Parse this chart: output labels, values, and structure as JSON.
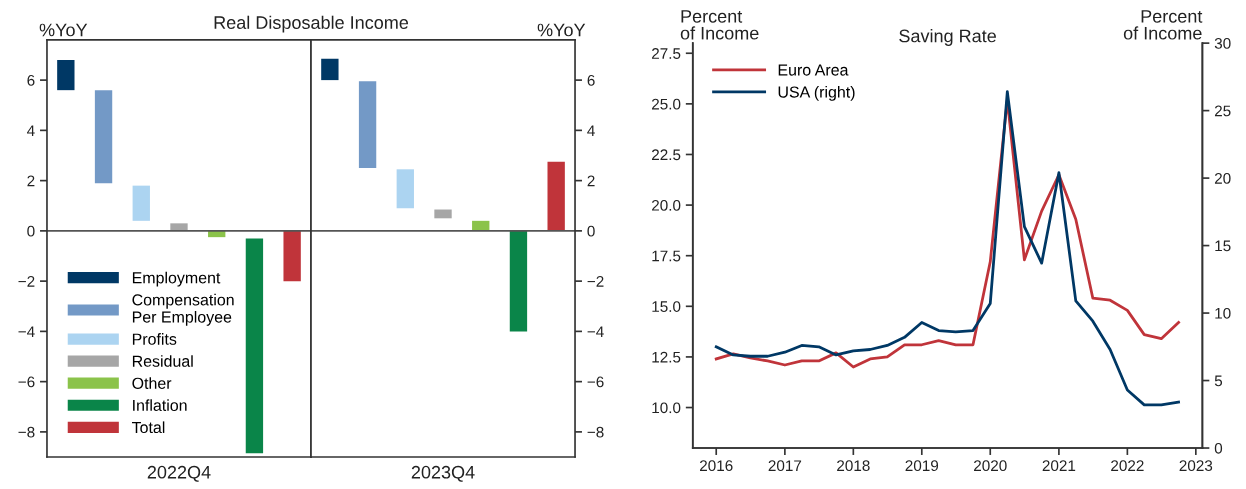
{
  "chart_data": [
    {
      "type": "bar",
      "title": "Real Disposable Income",
      "ylabel": "%YoY",
      "xlabel": "2022Q4",
      "categories": [
        null,
        null,
        null,
        null,
        null,
        null,
        null
      ],
      "series": [
        {
          "name": "Employment",
          "color": "#003865",
          "values": [
            1.2,
            null,
            null,
            null,
            null,
            null,
            null
          ],
          "base": [
            5.6,
            null,
            null,
            null,
            null,
            null,
            null
          ]
        },
        {
          "name": "Compensation\nPer Employee",
          "color": "#7399c6",
          "values": [
            null,
            3.7,
            null,
            null,
            null,
            null,
            null
          ],
          "base": [
            null,
            1.9,
            null,
            null,
            null,
            null,
            null
          ]
        },
        {
          "name": "Profits",
          "color": "#acd4f1",
          "values": [
            null,
            null,
            1.4,
            null,
            null,
            null,
            null
          ],
          "base": [
            null,
            null,
            0.4,
            null,
            null,
            null,
            null
          ]
        },
        {
          "name": "Residual",
          "color": "#a6a6a6",
          "values": [
            null,
            null,
            null,
            0.3,
            null,
            null,
            null
          ],
          "base": [
            null,
            null,
            null,
            0,
            null,
            null,
            null
          ]
        },
        {
          "name": "Other",
          "color": "#8bc34a",
          "values": [
            null,
            null,
            null,
            null,
            -0.25,
            null,
            null
          ],
          "base": [
            null,
            null,
            null,
            null,
            0,
            null,
            null
          ]
        },
        {
          "name": "Inflation",
          "color": "#0a8549",
          "values": [
            null,
            null,
            null,
            null,
            null,
            -8.55,
            null
          ],
          "base": [
            null,
            null,
            null,
            null,
            null,
            -0.3,
            null
          ]
        },
        {
          "name": "Total",
          "color": "#c0343a",
          "values": [
            null,
            null,
            null,
            null,
            null,
            null,
            -2.0
          ],
          "base": [
            null,
            null,
            null,
            null,
            null,
            null,
            0
          ]
        }
      ],
      "ylim": [
        -9,
        7.6
      ],
      "yticks": [
        {
          "value": -8,
          "label": "−8"
        },
        {
          "value": -6,
          "label": "−6"
        },
        {
          "value": -4,
          "label": "−4"
        },
        {
          "value": -2,
          "label": "−2"
        },
        0,
        2,
        4,
        6
      ],
      "ref_lines": [
        {
          "axis": "y",
          "value": 0,
          "color": "#555555"
        }
      ],
      "tick_labels": "y",
      "legend": "bottom left",
      "grid": false
    },
    {
      "type": "bar",
      "ylabel": "%YoY",
      "xlabel": "2023Q4",
      "categories": [
        null,
        null,
        null,
        null,
        null,
        null,
        null
      ],
      "series": [
        {
          "color": "#003865",
          "values": [
            0.85,
            null,
            null,
            null,
            null,
            null,
            null
          ],
          "base": [
            6.0,
            null,
            null,
            null,
            null,
            null,
            null
          ]
        },
        {
          "color": "#7399c6",
          "values": [
            null,
            3.45,
            null,
            null,
            null,
            null,
            null
          ],
          "base": [
            null,
            2.5,
            null,
            null,
            null,
            null,
            null
          ]
        },
        {
          "color": "#acd4f1",
          "values": [
            null,
            null,
            1.55,
            null,
            null,
            null,
            null
          ],
          "base": [
            null,
            null,
            0.9,
            null,
            null,
            null,
            null
          ]
        },
        {
          "color": "#a6a6a6",
          "values": [
            null,
            null,
            null,
            0.35,
            null,
            null,
            null
          ],
          "base": [
            null,
            null,
            null,
            0.5,
            null,
            null,
            null
          ]
        },
        {
          "color": "#8bc34a",
          "values": [
            null,
            null,
            null,
            null,
            0.4,
            null,
            null
          ],
          "base": [
            null,
            null,
            null,
            null,
            0,
            null,
            null
          ]
        },
        {
          "color": "#0a8549",
          "values": [
            null,
            null,
            null,
            null,
            null,
            -4.0,
            null
          ],
          "base": [
            null,
            null,
            null,
            null,
            null,
            0,
            null
          ]
        },
        {
          "color": "#c0343a",
          "values": [
            null,
            null,
            null,
            null,
            null,
            null,
            2.75
          ],
          "base": [
            null,
            null,
            null,
            null,
            null,
            null,
            0
          ]
        }
      ],
      "ylim": [
        -9,
        7.6
      ],
      "yticks": [
        {
          "value": -8,
          "label": "−8"
        },
        {
          "value": -6,
          "label": "−6"
        },
        {
          "value": -4,
          "label": "−4"
        },
        {
          "value": -2,
          "label": "−2"
        },
        0,
        2,
        4,
        6
      ],
      "ref_lines": [
        {
          "axis": "y",
          "value": 0,
          "color": "#555555"
        }
      ],
      "tick_labels": "y",
      "grid": false
    },
    {
      "type": "line",
      "title": "Saving Rate",
      "ylabel": "Percent\nof Income",
      "y2label": "Percent\nof Income",
      "x": [
        "2016-01-01",
        "2016-04-01",
        "2016-07-01",
        "2016-10-01",
        "2017-01-01",
        "2017-04-01",
        "2017-07-01",
        "2017-10-01",
        "2018-01-01",
        "2018-04-01",
        "2018-07-01",
        "2018-10-01",
        "2019-01-01",
        "2019-04-01",
        "2019-07-01",
        "2019-10-01",
        "2020-01-01",
        "2020-04-01",
        "2020-07-01",
        "2020-10-01",
        "2021-01-01",
        "2021-04-01",
        "2021-07-01",
        "2021-10-01",
        "2022-01-01",
        "2022-04-01",
        "2022-07-01",
        "2022-10-01"
      ],
      "series": [
        {
          "name": "Euro Area",
          "color": "#c0343a",
          "values": [
            12.4,
            12.65,
            12.45,
            12.3,
            12.1,
            12.3,
            12.3,
            12.7,
            12.0,
            12.4,
            12.5,
            13.1,
            13.1,
            13.3,
            13.1,
            13.1,
            17.2,
            25.2,
            17.3,
            19.7,
            21.5,
            19.3,
            15.4,
            15.3,
            14.8,
            13.6,
            13.4,
            14.2
          ]
        },
        {
          "name": "USA (right)",
          "color": "#003865",
          "axis": "y2",
          "values": [
            7.5,
            6.9,
            6.8,
            6.8,
            7.1,
            7.6,
            7.5,
            6.9,
            7.2,
            7.3,
            7.6,
            8.2,
            9.3,
            8.7,
            8.6,
            8.7,
            10.7,
            26.4,
            16.4,
            13.7,
            20.4,
            10.9,
            9.4,
            7.3,
            4.3,
            3.2,
            3.2,
            3.4
          ]
        }
      ],
      "xlim": [
        "2015-08-29",
        "2023-02-05"
      ],
      "xticks": [
        {
          "value": "2016-01-01",
          "label": "2016"
        },
        {
          "value": "2017-01-01",
          "label": "2017"
        },
        {
          "value": "2018-01-01",
          "label": "2018"
        },
        {
          "value": "2019-01-01",
          "label": "2019"
        },
        {
          "value": "2020-01-01",
          "label": "2020"
        },
        {
          "value": "2021-01-01",
          "label": "2021"
        },
        {
          "value": "2022-01-01",
          "label": "2022"
        },
        {
          "value": "2023-01-01",
          "label": "2023"
        }
      ],
      "ylim": [
        8,
        28
      ],
      "yticks": [
        {
          "value": 10,
          "label": "10.0"
        },
        {
          "value": 12.5,
          "label": "12.5"
        },
        {
          "value": 15,
          "label": "15.0"
        },
        {
          "value": 17.5,
          "label": "17.5"
        },
        {
          "value": 20,
          "label": "20.0"
        },
        {
          "value": 22.5,
          "label": "22.5"
        },
        {
          "value": 25,
          "label": "25.0"
        },
        {
          "value": 27.5,
          "label": "27.5"
        }
      ],
      "y2lim": [
        0,
        30
      ],
      "y2ticks": [
        0,
        5,
        10,
        15,
        20,
        25,
        30
      ],
      "legend": "top left",
      "grid": false
    }
  ]
}
